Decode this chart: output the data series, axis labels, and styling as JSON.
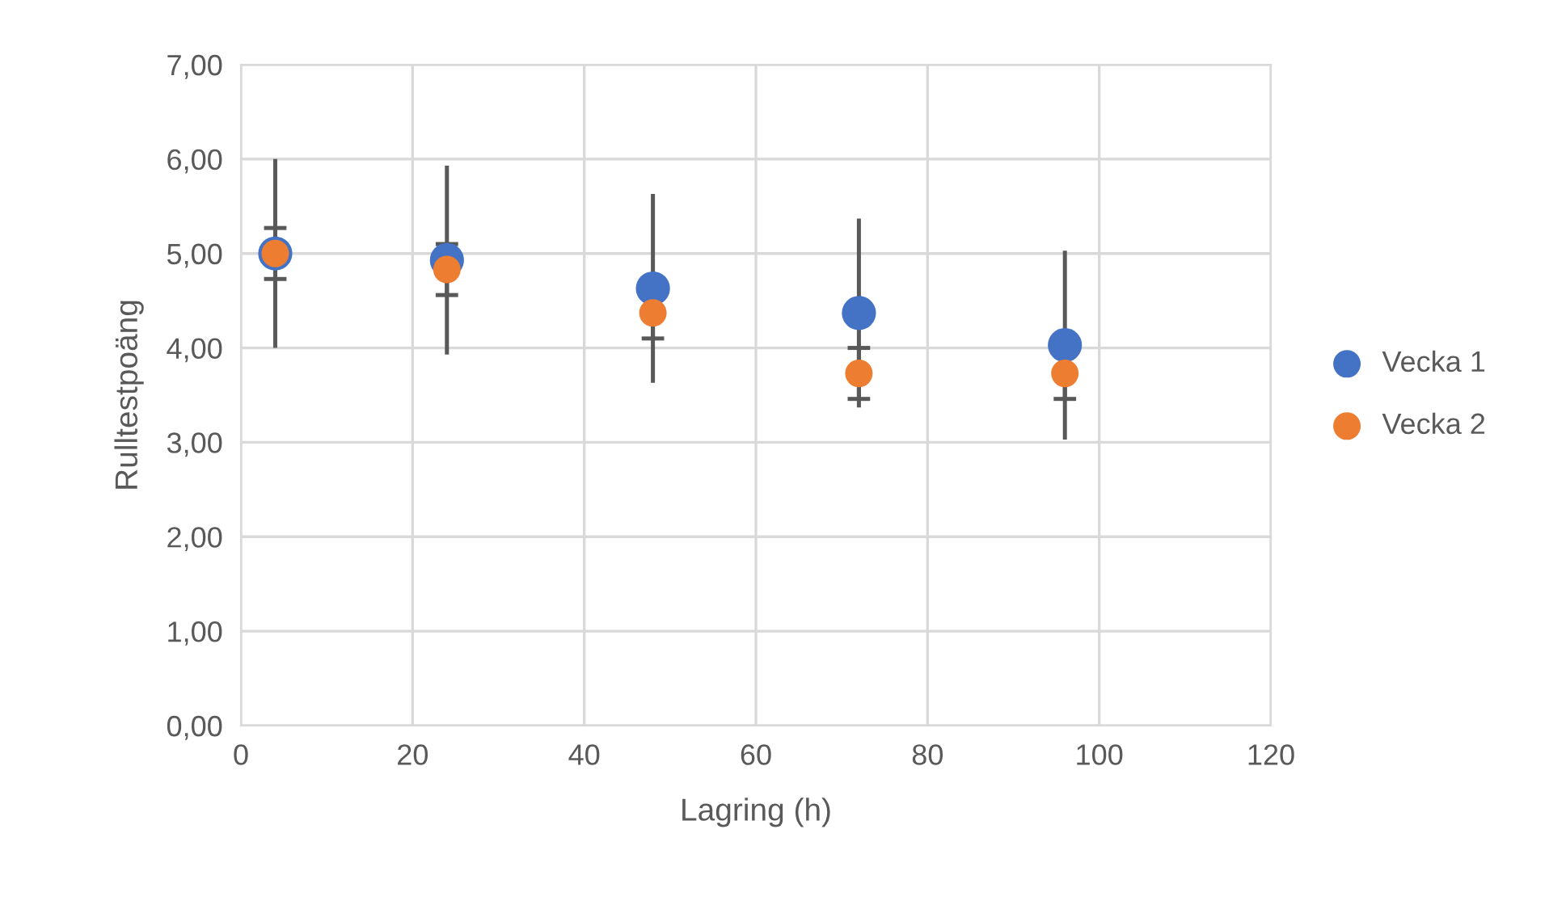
{
  "chart_data": {
    "type": "scatter",
    "xlabel": "Lagring (h)",
    "ylabel": "Rulltestpoäng",
    "x": [
      4,
      24,
      48,
      72,
      96
    ],
    "series": [
      {
        "name": "Vecka 1",
        "color": "#4472c4",
        "values": [
          5.0,
          4.93,
          4.63,
          4.37,
          4.03
        ],
        "errors": [
          1.0,
          1.0,
          1.0,
          1.0,
          1.0
        ]
      },
      {
        "name": "Vecka 2",
        "color": "#ed7d31",
        "values": [
          5.0,
          4.83,
          4.37,
          3.73,
          3.73
        ],
        "errors": [
          0.27,
          0.27,
          0.27,
          0.27,
          0.27
        ]
      }
    ],
    "xlim": [
      0,
      120
    ],
    "xticks": [
      0,
      20,
      40,
      60,
      80,
      100,
      120
    ],
    "ylim": [
      0,
      7
    ],
    "yticks": [
      {
        "value": 0,
        "label": "0,00"
      },
      {
        "value": 1,
        "label": "1,00"
      },
      {
        "value": 2,
        "label": "2,00"
      },
      {
        "value": 3,
        "label": "3,00"
      },
      {
        "value": 4,
        "label": "4,00"
      },
      {
        "value": 5,
        "label": "5,00"
      },
      {
        "value": 6,
        "label": "6,00"
      },
      {
        "value": 7,
        "label": "7,00"
      }
    ],
    "grid": true,
    "legend": "right",
    "marker": "circle"
  }
}
